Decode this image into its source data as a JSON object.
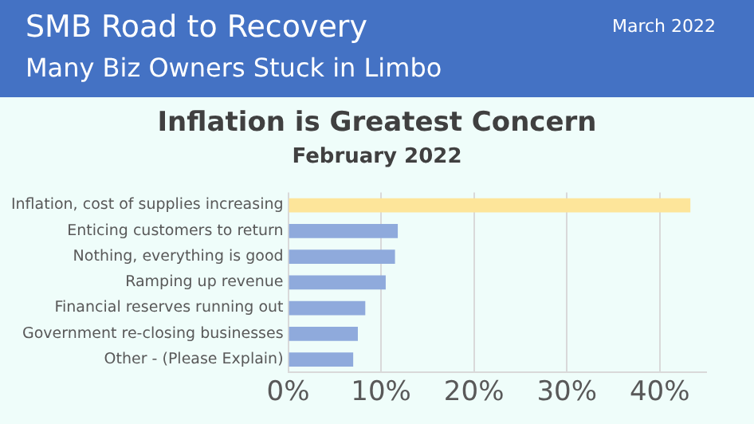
{
  "chart_data": {
    "type": "bar",
    "orientation": "horizontal",
    "title": "Inflation is Greatest Concern",
    "subtitle": "February 2022",
    "annotations": [
      "SMB Road to Recovery",
      "Many Biz Owners Stuck in Limbo",
      "March 2022"
    ],
    "categories": [
      "Inflation, cost of supplies increasing",
      "Enticing customers to return",
      "Nothing, everything is good",
      "Ramping up revenue",
      "Financial reserves running out",
      "Government re-closing businesses",
      "Other - (Please Explain)"
    ],
    "values": [
      43.3,
      11.8,
      11.5,
      10.5,
      8.3,
      7.5,
      7.0
    ],
    "colors": [
      "#fde59a",
      "#8faadc",
      "#8faadc",
      "#8faadc",
      "#8faadc",
      "#8faadc",
      "#8faadc"
    ],
    "xlim": [
      0,
      45
    ],
    "xticks": [
      {
        "value": 0,
        "label": "0%"
      },
      {
        "value": 10,
        "label": "10%"
      },
      {
        "value": 20,
        "label": "20%"
      },
      {
        "value": 30,
        "label": "30%"
      },
      {
        "value": 40,
        "label": "40%"
      }
    ],
    "grid": "x",
    "legend": false
  }
}
